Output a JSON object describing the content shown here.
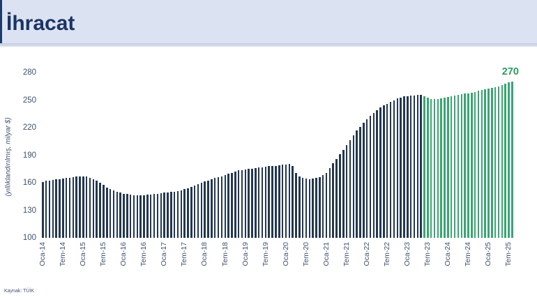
{
  "header": {
    "title": "İhracat"
  },
  "footer": {
    "source": "Kaynak: TÜİK"
  },
  "colors": {
    "header_bg": "#dbe3f2",
    "title_text": "#1c3464",
    "bar_navy": "#233750",
    "bar_green": "#3aa572",
    "annotation_green": "#2a9d5f",
    "axis_text": "#3f5170"
  },
  "chart_data": {
    "type": "bar",
    "title": "İhracat",
    "ylabel": "(yıllıklandırılmış, milyar $)",
    "ylim": [
      100,
      280
    ],
    "yticks": [
      100,
      130,
      160,
      190,
      220,
      250,
      280
    ],
    "grid": false,
    "legend_position": "none",
    "x_start_month": "Oca-14",
    "x_end_month": "Ağu-25",
    "x_tick_every": 6,
    "x_tick_labels": [
      "Oca-14",
      "Tem-14",
      "Oca-15",
      "Tem-15",
      "Oca-16",
      "Tem-16",
      "Oca-17",
      "Tem-17",
      "Oca-18",
      "Tem-18",
      "Oca-19",
      "Tem-19",
      "Oca-20",
      "Tem-20",
      "Oca-21",
      "Tem-21",
      "Oca-22",
      "Tem-22",
      "Oca-23",
      "Tem-23",
      "Oca-24",
      "Tem-24",
      "Oca-25",
      "Tem-25"
    ],
    "highlight_start_index": 113,
    "highlight_start_month": "Haz-23",
    "bar_color": "#233750",
    "highlight_color": "#3aa572",
    "last_value_label": "270",
    "values": [
      161,
      162,
      162.5,
      163,
      163.5,
      164,
      164.5,
      165,
      165.5,
      166,
      166.5,
      167,
      167,
      166.5,
      165.5,
      164,
      162,
      160,
      157.5,
      155,
      153,
      151.5,
      150,
      149,
      148,
      147.5,
      147,
      146.5,
      146.5,
      146.5,
      146.5,
      147,
      147,
      147.5,
      148,
      148.5,
      149,
      149.5,
      150,
      150.5,
      151,
      152,
      153,
      154,
      155.5,
      157,
      158.5,
      160,
      161.5,
      162.5,
      164,
      165,
      166,
      167,
      168.5,
      170,
      171,
      172.5,
      173.5,
      174,
      174.5,
      175,
      175.5,
      176,
      176.5,
      177,
      177.5,
      178,
      178,
      178.5,
      179,
      179.5,
      180,
      180.5,
      178.5,
      171,
      167,
      165,
      164.5,
      164,
      164.5,
      165,
      166,
      168,
      171,
      176,
      181,
      186,
      191,
      196,
      201,
      206,
      212,
      217,
      221,
      225,
      229,
      233,
      236,
      239,
      242,
      244,
      246,
      248,
      250,
      252,
      253,
      254,
      254.5,
      255,
      255,
      255.5,
      255.5,
      254,
      252.5,
      251.5,
      251,
      251.5,
      252,
      253,
      253.5,
      254,
      255,
      256,
      256.5,
      257,
      257.5,
      258,
      259,
      260,
      261,
      262,
      262.5,
      263,
      264,
      265,
      266,
      267.5,
      269,
      270
    ]
  }
}
